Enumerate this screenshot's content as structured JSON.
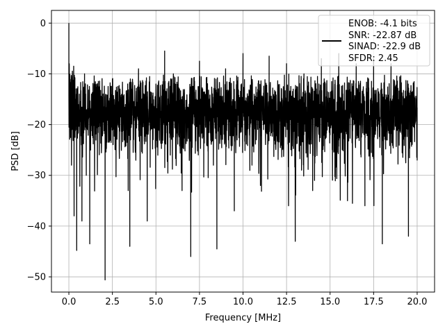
{
  "chart_data": {
    "type": "line",
    "title": "",
    "xlabel": "Frequency [MHz]",
    "ylabel": "PSD [dB]",
    "xlim": [
      -1.0,
      21.0
    ],
    "ylim": [
      -53.0,
      2.5
    ],
    "xticks": [
      0.0,
      2.5,
      5.0,
      7.5,
      10.0,
      12.5,
      15.0,
      17.5,
      20.0
    ],
    "xtick_labels": [
      "0.0",
      "2.5",
      "5.0",
      "7.5",
      "10.0",
      "12.5",
      "15.0",
      "17.5",
      "20.0"
    ],
    "yticks": [
      0,
      -10,
      -20,
      -30,
      -40,
      -50
    ],
    "ytick_labels": [
      "0",
      "−10",
      "−20",
      "−30",
      "−40",
      "−50"
    ],
    "grid": true,
    "legend_position": "top-right",
    "legend_lines": [
      "ENOB: -4.1 bits",
      "SNR: -22.87 dB",
      "SINAD: -22.9 dB",
      "SFDR: 2.45"
    ],
    "series_color": "#000000",
    "series": [
      {
        "x": [
          0.0,
          0.02,
          0.05,
          0.1,
          0.15,
          0.2,
          0.3,
          0.4,
          0.45,
          0.6,
          0.75,
          0.9,
          1.0,
          1.2,
          1.5,
          2.08,
          2.5,
          3.5,
          4.0,
          4.5,
          5.0,
          5.5,
          6.0,
          6.5,
          7.0,
          7.5,
          8.0,
          8.5,
          9.0,
          9.5,
          10.0,
          10.5,
          11.0,
          11.5,
          12.0,
          12.5,
          13.0,
          13.5,
          14.0,
          14.5,
          15.0,
          15.5,
          16.0,
          16.5,
          17.0,
          17.5,
          18.0,
          18.5,
          19.0,
          19.5,
          20.0
        ],
        "y": [
          0.0,
          -8.0,
          -18.0,
          -12.0,
          -28.0,
          -20.0,
          -38.0,
          -15.0,
          -44.8,
          -14.0,
          -39.0,
          -10.0,
          -30.0,
          -43.5,
          -12.0,
          -50.6,
          -11.0,
          -44.0,
          -9.0,
          -39.0,
          -12.0,
          -5.5,
          -10.0,
          -33.0,
          -46.0,
          -7.5,
          -20.0,
          -44.5,
          -9.0,
          -37.0,
          -6.0,
          -14.0,
          -32.0,
          -6.5,
          -20.0,
          -8.0,
          -43.0,
          -10.0,
          -33.0,
          -7.0,
          -22.0,
          -6.0,
          -35.0,
          -8.0,
          -36.0,
          -7.0,
          -43.5,
          -8.0,
          -20.0,
          -42.0,
          -27.0
        ]
      }
    ]
  }
}
